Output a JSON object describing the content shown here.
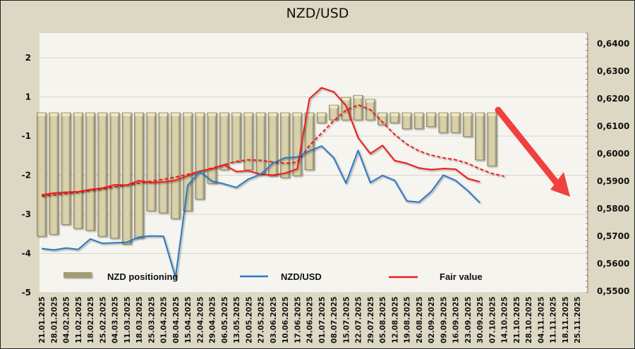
{
  "chart_data": {
    "type": "bar+line",
    "title": "NZD/USD",
    "categories": [
      "21.01.2025",
      "28.01.2025",
      "04.02.2025",
      "11.02.2025",
      "18.02.2025",
      "25.02.2025",
      "04.03.2025",
      "11.03.2025",
      "18.03.2025",
      "25.03.2025",
      "01.04.2025",
      "08.04.2025",
      "15.04.2025",
      "22.04.2025",
      "29.04.2025",
      "06.05.2025",
      "13.05.2025",
      "20.05.2025",
      "27.05.2025",
      "03.06.2025",
      "10.06.2025",
      "17.06.2025",
      "24.06.2025",
      "01.07.2025",
      "08.07.2025",
      "15.07.2025",
      "22.07.2025",
      "29.07.2025",
      "05.08.2025",
      "12.08.2025",
      "19.08.2025",
      "26.08.2025",
      "02.09.2025",
      "09.09.2025",
      "16.09.2025",
      "23.09.2025",
      "30.09.2025",
      "07.10.2025",
      "14.10.2025",
      "21.10.2025",
      "28.10.2025",
      "04.11.2025",
      "11.11.2025",
      "18.11.2025",
      "25.11.2025"
    ],
    "left_axis": {
      "ticks": [
        "2",
        "1",
        "-1",
        "-2",
        "-3",
        "-4",
        "-5"
      ]
    },
    "right_axis": {
      "ticks": [
        "0,6400",
        "0,6300",
        "0,6200",
        "0,6100",
        "0,6000",
        "0,5900",
        "0,5800",
        "0,5700",
        "0,5600",
        "0,5500"
      ],
      "range": [
        0.55,
        0.64
      ]
    },
    "series": [
      {
        "name": "NZD positioning",
        "type": "bar",
        "axis": "left",
        "color": "#c9c29a",
        "values": [
          -3.1,
          -3.05,
          -2.8,
          -2.9,
          -2.95,
          -3.1,
          -3.15,
          -3.3,
          -3.15,
          -2.45,
          -2.5,
          -2.65,
          -2.45,
          -2.15,
          -1.75,
          -1.4,
          -1.2,
          -1.4,
          -1.5,
          -1.55,
          -1.6,
          -1.55,
          -1.4,
          -0.2,
          0.25,
          0.45,
          0.5,
          0.4,
          -0.25,
          -0.2,
          -0.35,
          -0.35,
          -0.3,
          -0.45,
          -0.45,
          -0.55,
          -1.15,
          -1.3,
          null,
          null,
          null,
          null,
          null,
          null,
          null
        ]
      },
      {
        "name": "NZD/USD",
        "type": "line",
        "axis": "right",
        "color": "#2a7ac7",
        "values": [
          0.5655,
          0.565,
          0.5657,
          0.5652,
          0.569,
          0.5674,
          0.5676,
          0.5678,
          0.5697,
          0.5701,
          0.57,
          0.555,
          0.5885,
          0.5935,
          0.59,
          0.589,
          0.5877,
          0.5908,
          0.5925,
          0.5966,
          0.5985,
          0.5988,
          0.601,
          0.6028,
          0.5985,
          0.5893,
          0.6012,
          0.5895,
          0.5921,
          0.5903,
          0.5828,
          0.5824,
          0.5862,
          0.5922,
          0.5903,
          0.5866,
          0.5822,
          null,
          null,
          null,
          null,
          null,
          null,
          null,
          null
        ]
      },
      {
        "name": "Fair value",
        "type": "line",
        "axis": "right",
        "color": "#ee1c1c",
        "values": [
          0.585,
          0.5857,
          0.586,
          0.5862,
          0.587,
          0.5875,
          0.5887,
          0.5886,
          0.5902,
          0.5895,
          0.5897,
          0.5903,
          0.592,
          0.5937,
          0.5945,
          0.596,
          0.5935,
          0.5938,
          0.5925,
          0.5922,
          0.5929,
          0.5945,
          0.62,
          0.624,
          0.6225,
          0.6175,
          0.6058,
          0.6,
          0.603,
          0.5975,
          0.5965,
          0.5948,
          0.5942,
          0.5946,
          0.5944,
          0.591,
          0.5898,
          null,
          null,
          null,
          null,
          null,
          null,
          null,
          null
        ]
      },
      {
        "name": "Fair value (trend)",
        "type": "line",
        "style": "dashed",
        "axis": "right",
        "color": "#ee1c1c",
        "values": [
          0.5845,
          0.585,
          0.5855,
          0.586,
          0.5866,
          0.5872,
          0.5879,
          0.5886,
          0.5893,
          0.59,
          0.5907,
          0.5915,
          0.5925,
          0.5935,
          0.5948,
          0.596,
          0.5972,
          0.5978,
          0.5976,
          0.597,
          0.5965,
          0.597,
          0.603,
          0.6075,
          0.612,
          0.6158,
          0.6178,
          0.616,
          0.6115,
          0.607,
          0.6035,
          0.601,
          0.5995,
          0.5985,
          0.5978,
          0.5965,
          0.5945,
          0.5928,
          0.5918,
          null,
          null,
          null,
          null,
          null,
          null
        ]
      }
    ],
    "legend": {
      "position": "bottom",
      "items": [
        "NZD positioning",
        "NZD/USD",
        "Fair value"
      ]
    },
    "annotation": "red-arrow-down",
    "grid": true
  }
}
